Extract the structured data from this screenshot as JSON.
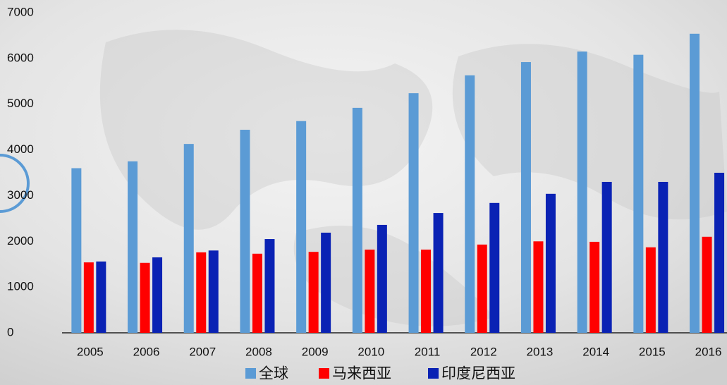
{
  "chart_data": {
    "type": "bar",
    "categories": [
      "2005",
      "2006",
      "2007",
      "2008",
      "2009",
      "2010",
      "2011",
      "2012",
      "2013",
      "2014",
      "2015",
      "2016"
    ],
    "series": [
      {
        "name": "全球",
        "color": "#5b9bd5",
        "values": [
          3600,
          3750,
          4130,
          4440,
          4630,
          4920,
          5240,
          5630,
          5920,
          6150,
          6080,
          6540
        ]
      },
      {
        "name": "马来西亚",
        "color": "#ff0000",
        "values": [
          1540,
          1530,
          1760,
          1730,
          1770,
          1820,
          1820,
          1930,
          2000,
          1990,
          1870,
          2100
        ]
      },
      {
        "name": "印度尼西亚",
        "color": "#0a22b4",
        "values": [
          1560,
          1650,
          1800,
          2050,
          2190,
          2360,
          2620,
          2840,
          3040,
          3300,
          3300,
          3500
        ]
      }
    ],
    "ylim": [
      0,
      7000
    ],
    "yticks": [
      0,
      1000,
      2000,
      3000,
      4000,
      5000,
      6000,
      7000
    ],
    "grid": false
  }
}
